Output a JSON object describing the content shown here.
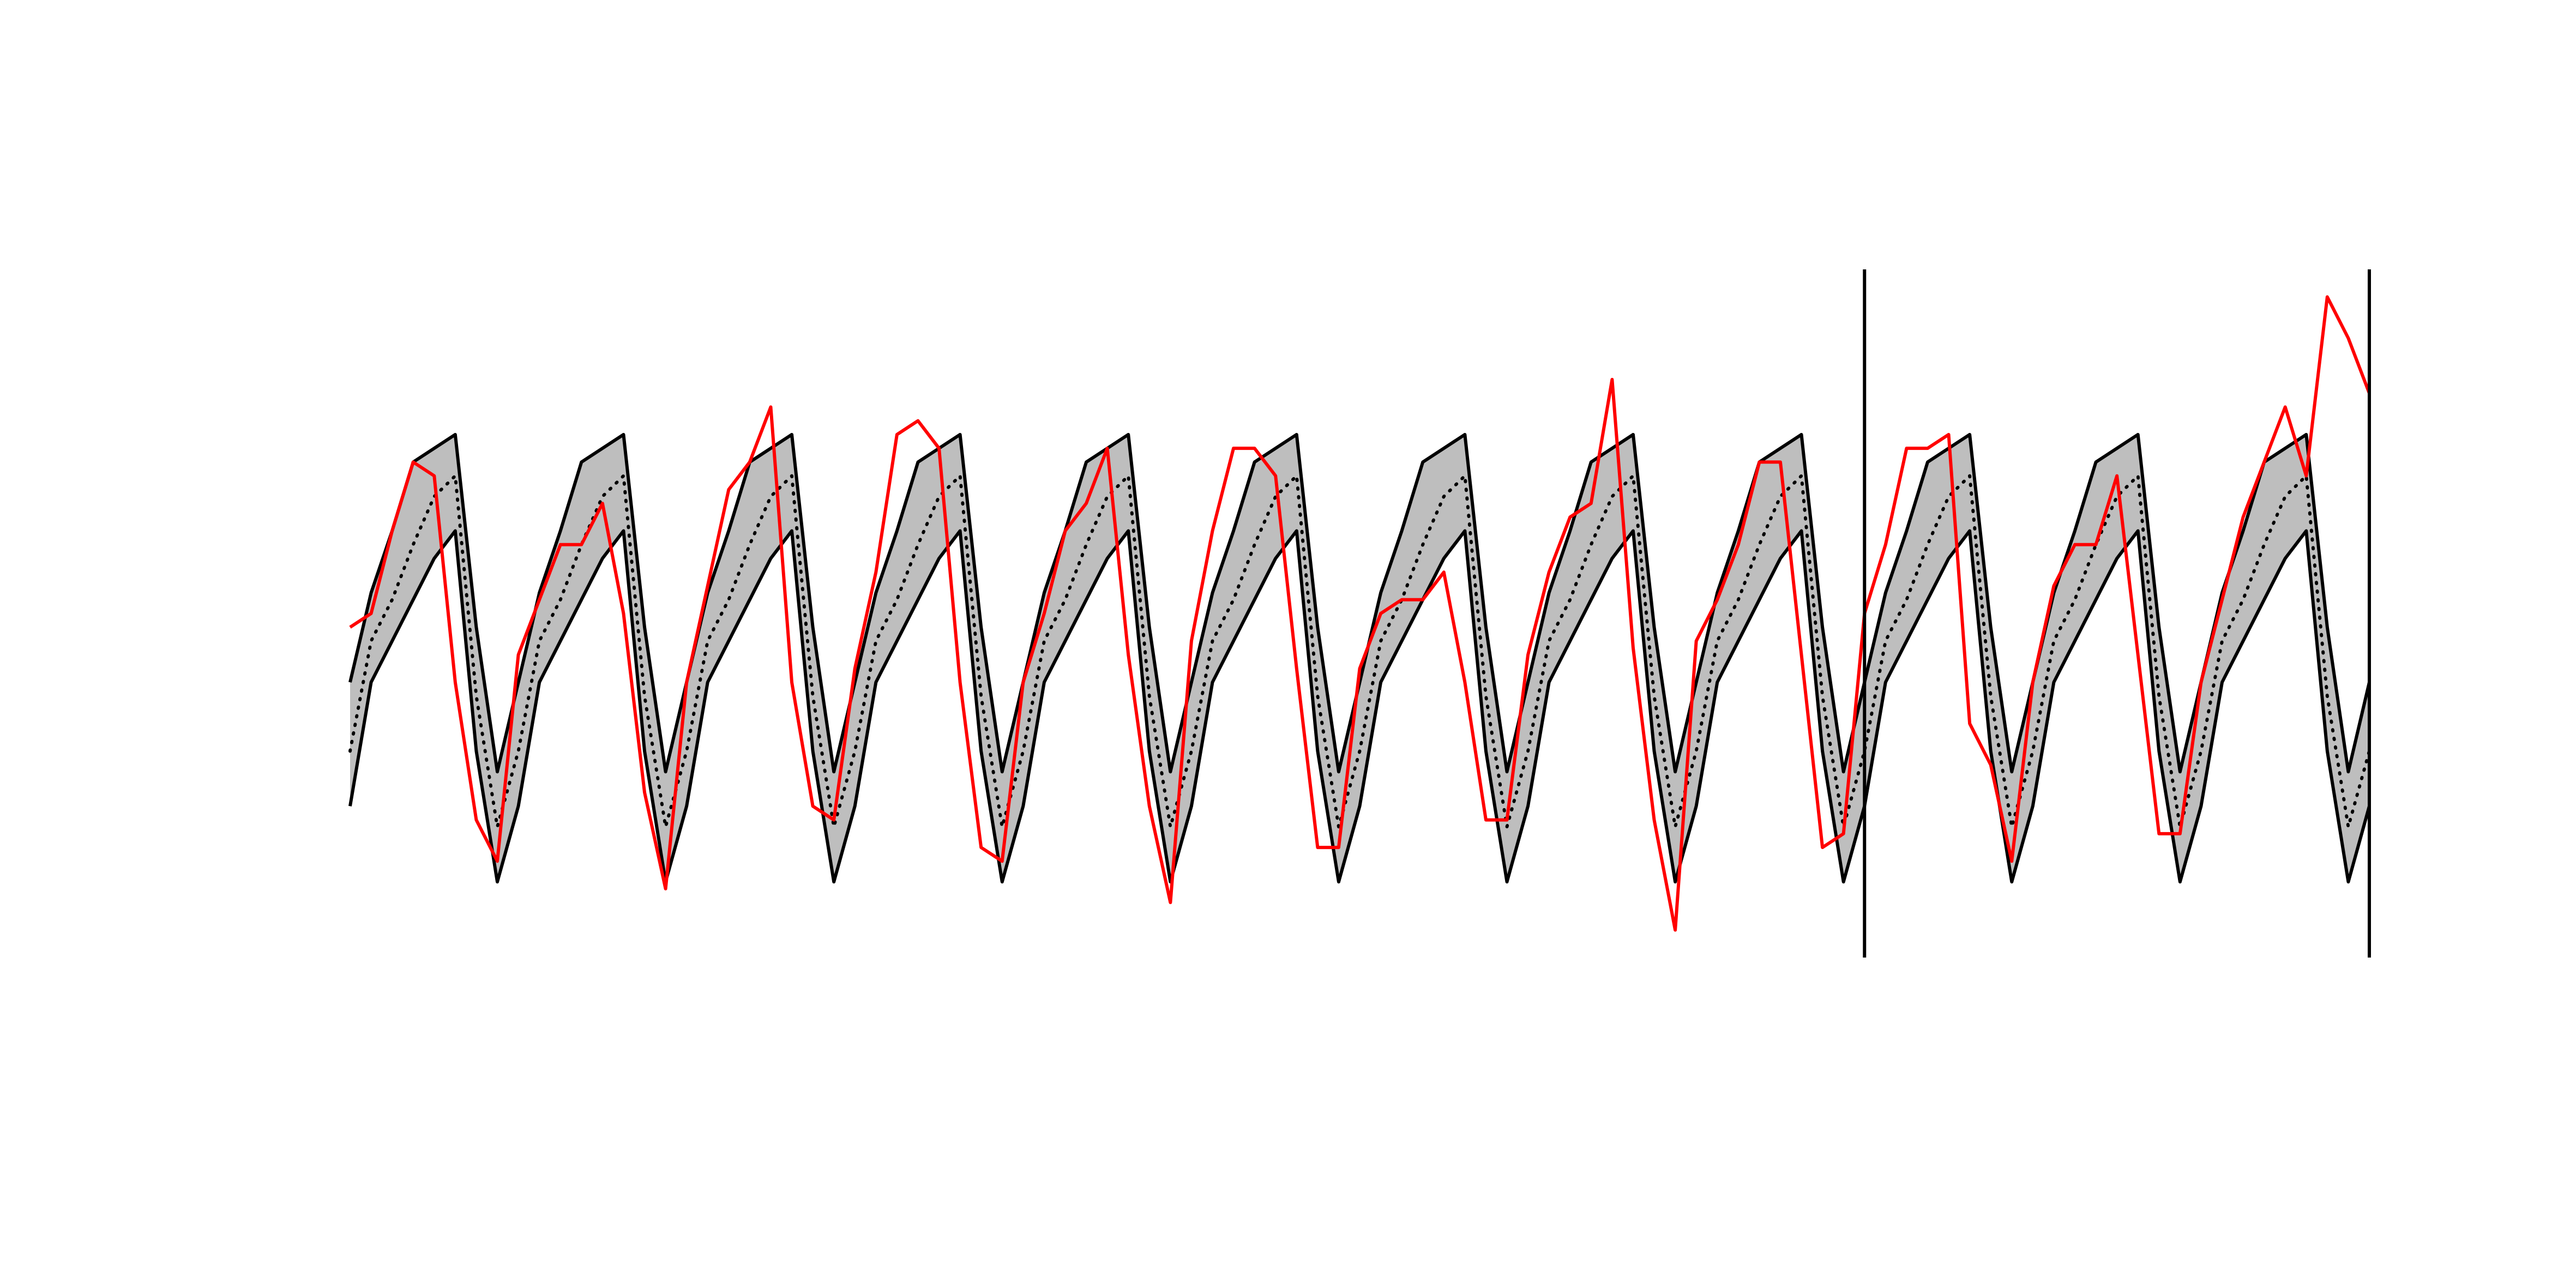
{
  "chart_data": {
    "type": "line",
    "xlim": [
      0,
      96
    ],
    "ylim": [
      0,
      100
    ],
    "band": {
      "color": "#bebebe"
    },
    "vlines": [
      72,
      96
    ],
    "vline_color": "#000000",
    "series": [
      {
        "color": "#000000",
        "style": "solid",
        "values": [
          22,
          40,
          46,
          52,
          58,
          62,
          30,
          11,
          22,
          40,
          46,
          52,
          58,
          62,
          30,
          11,
          22,
          40,
          46,
          52,
          58,
          62,
          30,
          11,
          22,
          40,
          46,
          52,
          58,
          62,
          30,
          11,
          22,
          40,
          46,
          52,
          58,
          62,
          30,
          11,
          22,
          40,
          46,
          52,
          58,
          62,
          30,
          11,
          22,
          40,
          46,
          52,
          58,
          62,
          30,
          11,
          22,
          40,
          46,
          52,
          58,
          62,
          30,
          11,
          22,
          40,
          46,
          52,
          58,
          62,
          30,
          11,
          22,
          40,
          46,
          52,
          58,
          62,
          30,
          11,
          22,
          40,
          46,
          52,
          58,
          62,
          30,
          11,
          22,
          40,
          46,
          52,
          58,
          62,
          30,
          11,
          22
        ]
      },
      {
        "color": "#000000",
        "style": "solid",
        "values": [
          40,
          53,
          62,
          72,
          74,
          76,
          48,
          27,
          40,
          53,
          62,
          72,
          74,
          76,
          48,
          27,
          40,
          53,
          62,
          72,
          74,
          76,
          48,
          27,
          40,
          53,
          62,
          72,
          74,
          76,
          48,
          27,
          40,
          53,
          62,
          72,
          74,
          76,
          48,
          27,
          40,
          53,
          62,
          72,
          74,
          76,
          48,
          27,
          40,
          53,
          62,
          72,
          74,
          76,
          48,
          27,
          40,
          53,
          62,
          72,
          74,
          76,
          48,
          27,
          40,
          53,
          62,
          72,
          74,
          76,
          48,
          27,
          40,
          53,
          62,
          72,
          74,
          76,
          48,
          27,
          40,
          53,
          62,
          72,
          74,
          76,
          48,
          27,
          40,
          53,
          62,
          72,
          74,
          76,
          48,
          27,
          40
        ]
      },
      {
        "color": "#000000",
        "style": "dotted",
        "values": [
          30,
          46,
          52,
          60,
          67,
          70,
          38,
          19,
          30,
          46,
          52,
          60,
          67,
          70,
          38,
          19,
          30,
          46,
          52,
          60,
          67,
          70,
          38,
          19,
          30,
          46,
          52,
          60,
          67,
          70,
          38,
          19,
          30,
          46,
          52,
          60,
          67,
          70,
          38,
          19,
          30,
          46,
          52,
          60,
          67,
          70,
          38,
          19,
          30,
          46,
          52,
          60,
          67,
          70,
          38,
          19,
          30,
          46,
          52,
          60,
          67,
          70,
          38,
          19,
          30,
          46,
          52,
          60,
          67,
          70,
          38,
          19,
          30,
          46,
          52,
          60,
          67,
          70,
          38,
          19,
          30,
          46,
          52,
          60,
          67,
          70,
          38,
          19,
          30,
          46,
          52,
          60,
          67,
          70,
          38,
          19,
          30
        ]
      },
      {
        "color": "#ff0000",
        "style": "solid",
        "values": [
          48,
          50,
          62,
          72,
          70,
          40,
          20,
          14,
          44,
          52,
          60,
          60,
          66,
          50,
          24,
          10,
          40,
          54,
          68,
          72,
          80,
          40,
          22,
          20,
          42,
          56,
          76,
          78,
          74,
          40,
          16,
          14,
          40,
          50,
          62,
          66,
          74,
          44,
          22,
          8,
          46,
          62,
          74,
          74,
          70,
          42,
          16,
          16,
          42,
          50,
          52,
          52,
          56,
          40,
          20,
          20,
          44,
          56,
          64,
          66,
          84,
          45,
          20,
          4,
          46,
          52,
          60,
          72,
          72,
          44,
          16,
          18,
          50,
          60,
          74,
          74,
          76,
          34,
          28,
          14,
          40,
          54,
          60,
          60,
          70,
          44,
          18,
          18,
          40,
          52,
          64,
          72,
          80,
          70,
          96,
          90,
          82
        ]
      }
    ]
  }
}
